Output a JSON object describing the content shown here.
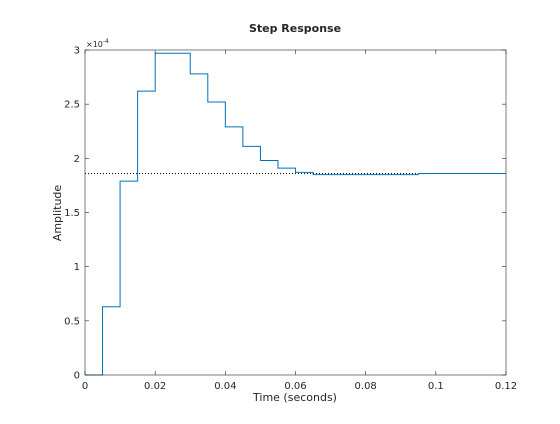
{
  "chart_data": {
    "type": "line",
    "title": "Step Response",
    "xlabel": "Time (seconds)",
    "ylabel": "Amplitude",
    "y_exponent_label": "×10",
    "y_exponent_power": "-4",
    "y_scale_exponent": -4,
    "xlim": [
      0,
      0.12
    ],
    "ylim": [
      0,
      3
    ],
    "x_ticks": [
      0,
      0.02,
      0.04,
      0.06,
      0.08,
      0.1,
      0.12
    ],
    "x_tick_labels": [
      "0",
      "0.02",
      "0.04",
      "0.06",
      "0.08",
      "0.1",
      "0.12"
    ],
    "y_ticks": [
      0,
      0.5,
      1,
      1.5,
      2,
      2.5,
      3
    ],
    "y_tick_labels": [
      "0",
      "0.5",
      "1",
      "1.5",
      "2",
      "2.5",
      "3"
    ],
    "grid": false,
    "series": [
      {
        "style": "stairs",
        "color": "#0072BD",
        "sample_time": 0.005,
        "x": [
          0,
          0.005,
          0.01,
          0.015,
          0.02,
          0.025,
          0.03,
          0.035,
          0.04,
          0.045,
          0.05,
          0.055,
          0.06,
          0.065,
          0.07,
          0.075,
          0.08,
          0.085,
          0.09,
          0.095,
          0.1,
          0.105,
          0.11,
          0.115,
          0.12
        ],
        "y": [
          0,
          0.63,
          1.79,
          2.62,
          2.97,
          2.97,
          2.78,
          2.52,
          2.29,
          2.11,
          1.98,
          1.91,
          1.87,
          1.85,
          1.85,
          1.85,
          1.85,
          1.85,
          1.85,
          1.86,
          1.86,
          1.86,
          1.86,
          1.86,
          1.86
        ]
      }
    ],
    "steady_state": {
      "value": 1.86,
      "style": "dotted",
      "color": "#000000"
    }
  }
}
